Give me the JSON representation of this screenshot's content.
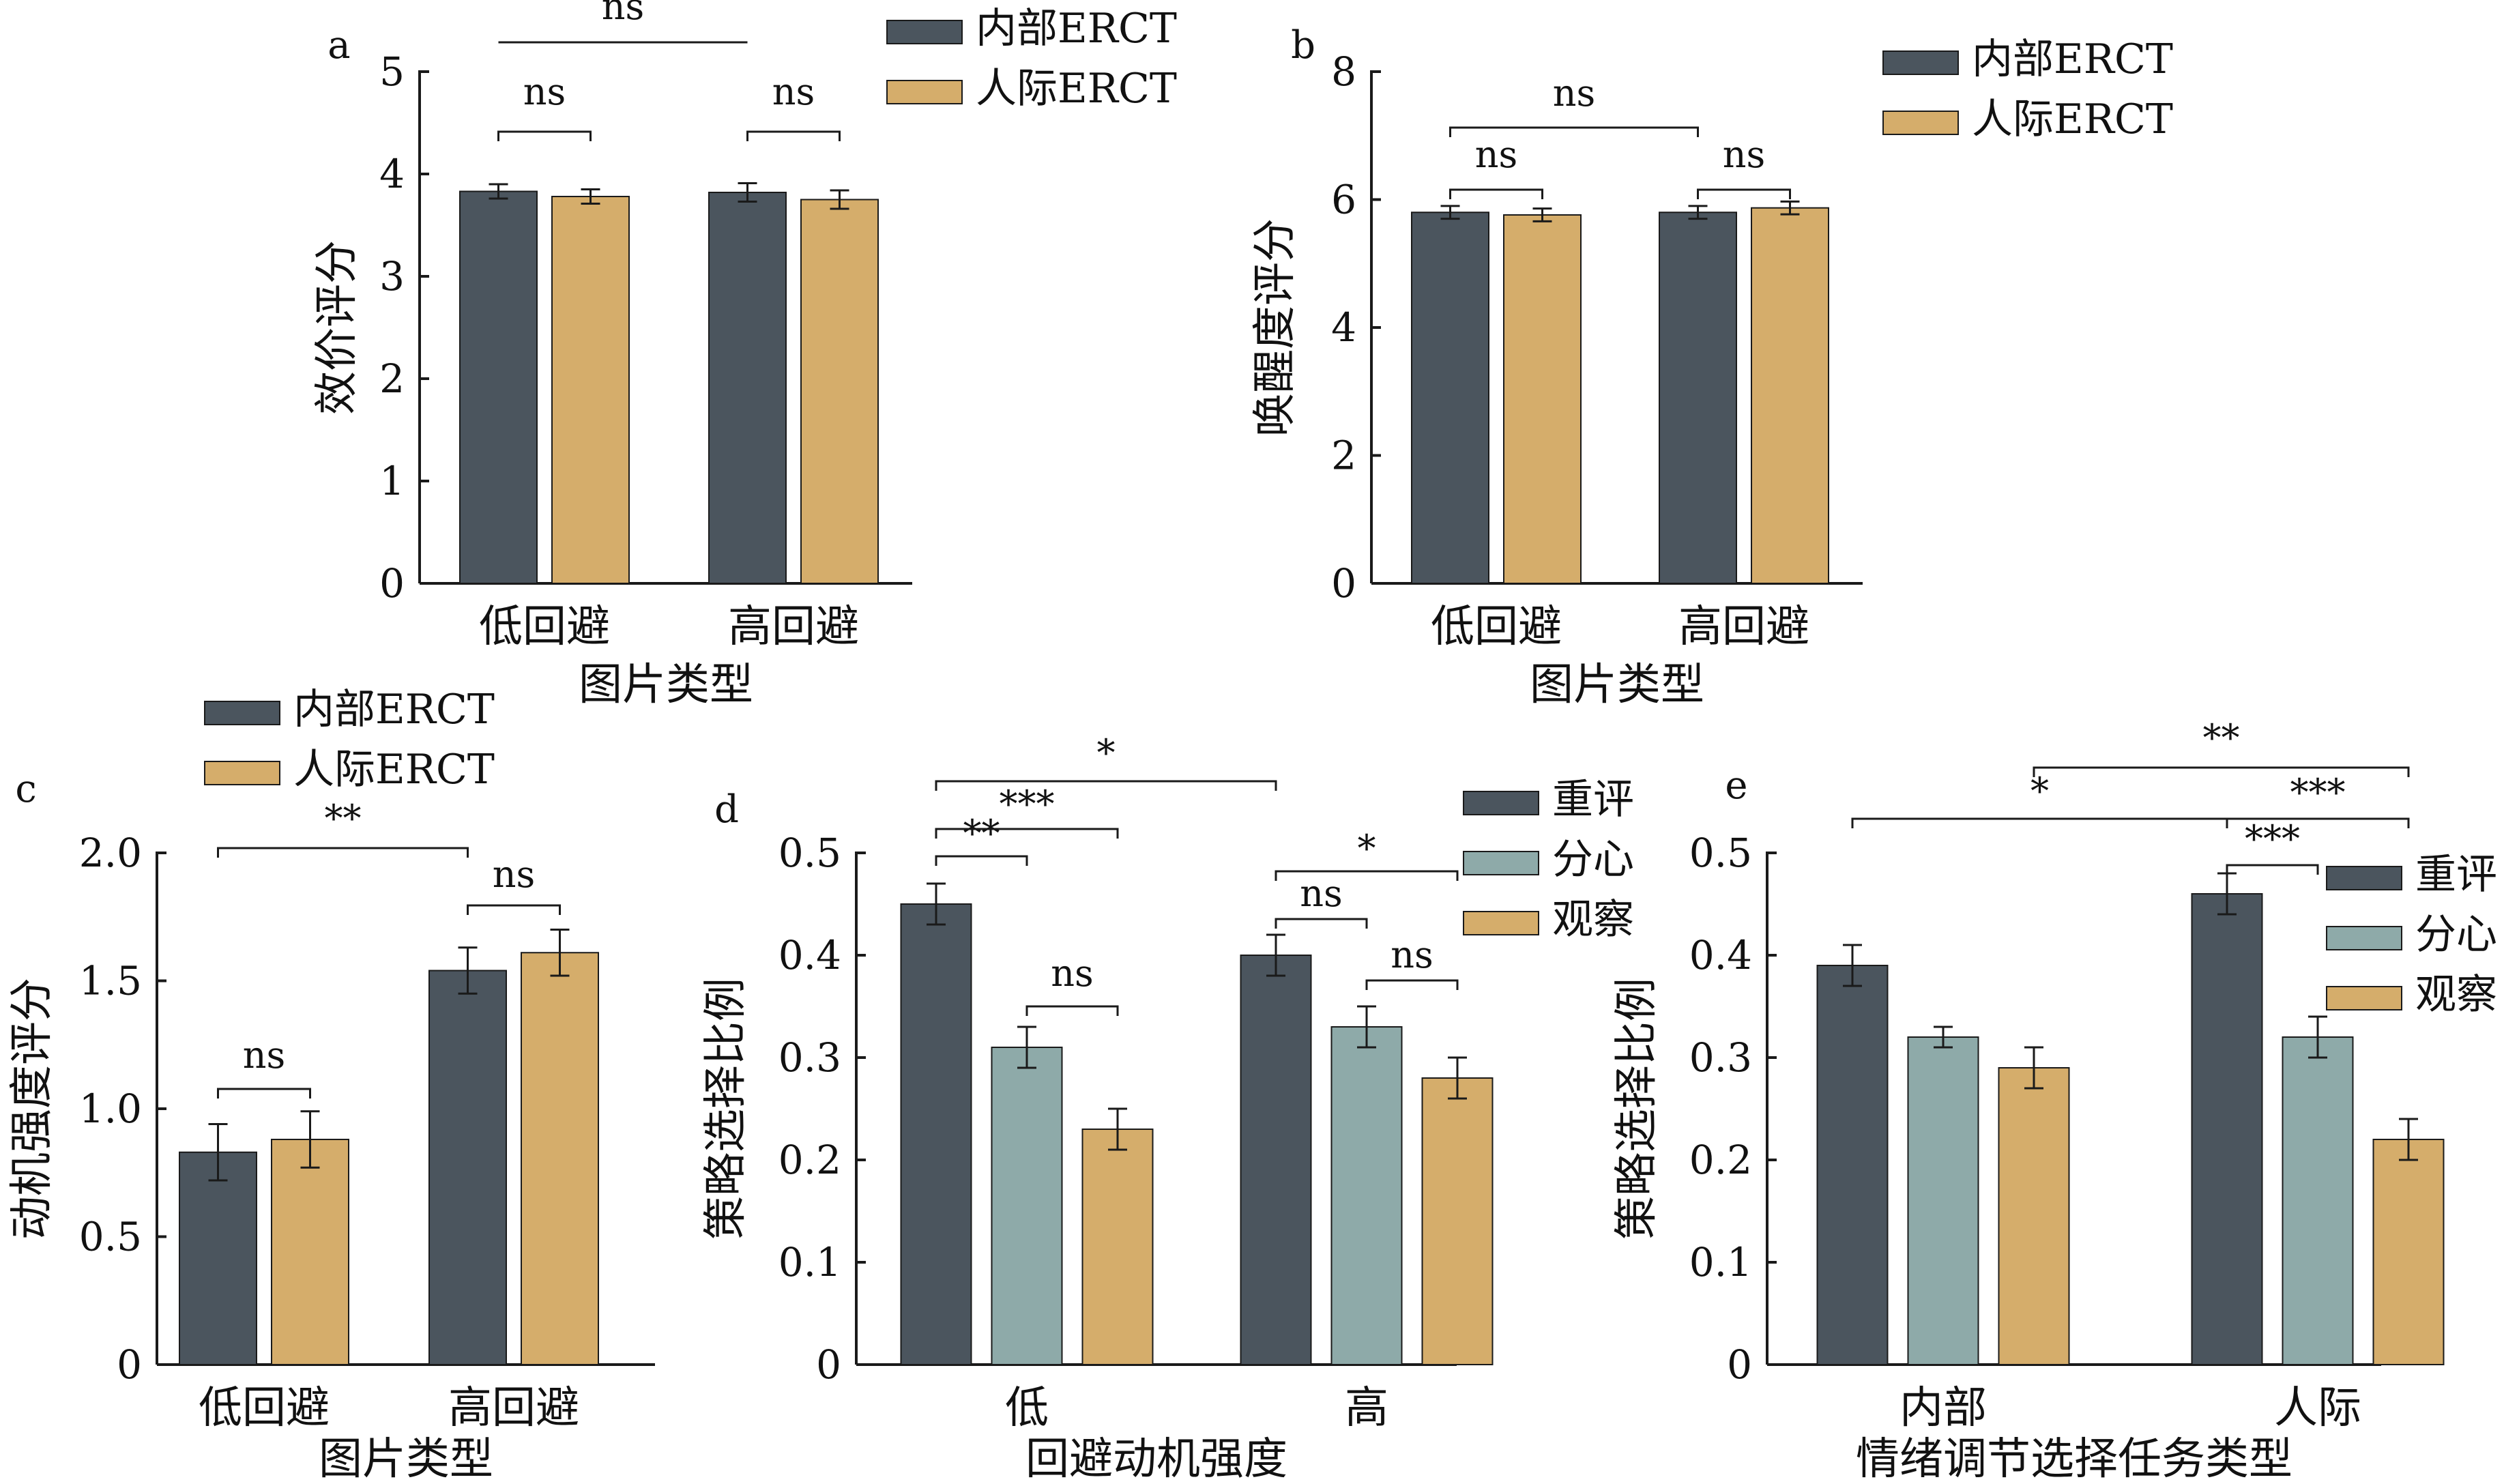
{
  "colors": {
    "dark": "#4b555e",
    "tan": "#d5ad6b",
    "teal": "#8eaaa9",
    "line": "#1a1a1a"
  },
  "chart_data": [
    {
      "panel": "a",
      "type": "bar",
      "categories": [
        "低回避",
        "高回避"
      ],
      "series": [
        {
          "name": "内部ERCT",
          "values": [
            3.83,
            3.82
          ],
          "errors": [
            0.07,
            0.09
          ]
        },
        {
          "name": "人际ERCT",
          "values": [
            3.78,
            3.75
          ],
          "errors": [
            0.07,
            0.09
          ]
        }
      ],
      "xlabel": "图片类型",
      "ylabel": "效价评分",
      "ylim": [
        0,
        5
      ],
      "yticks": [
        "0",
        "1",
        "2",
        "3",
        "4",
        "5"
      ],
      "legend_position": "top-right",
      "significance": [
        {
          "label": "ns",
          "from": [
            0,
            0
          ],
          "to": [
            0,
            1
          ]
        },
        {
          "label": "ns",
          "from": [
            1,
            0
          ],
          "to": [
            1,
            1
          ]
        },
        {
          "label": "ns",
          "from": [
            0,
            0
          ],
          "to": [
            1,
            0
          ]
        }
      ]
    },
    {
      "panel": "b",
      "type": "bar",
      "categories": [
        "低回避",
        "高回避"
      ],
      "series": [
        {
          "name": "内部ERCT",
          "values": [
            5.8,
            5.8
          ],
          "errors": [
            0.1,
            0.1
          ]
        },
        {
          "name": "人际ERCT",
          "values": [
            5.76,
            5.87
          ],
          "errors": [
            0.1,
            0.1
          ]
        }
      ],
      "xlabel": "图片类型",
      "ylabel": "唤醒度评分",
      "ylim": [
        0,
        8
      ],
      "yticks": [
        "0",
        "2",
        "4",
        "6",
        "8"
      ],
      "legend_position": "top-right",
      "significance": [
        {
          "label": "ns",
          "from": [
            0,
            0
          ],
          "to": [
            0,
            1
          ]
        },
        {
          "label": "ns",
          "from": [
            1,
            0
          ],
          "to": [
            1,
            1
          ]
        },
        {
          "label": "ns",
          "from": [
            0,
            0
          ],
          "to": [
            1,
            0
          ]
        }
      ]
    },
    {
      "panel": "c",
      "type": "bar",
      "categories": [
        "低回避",
        "高回避"
      ],
      "series": [
        {
          "name": "内部ERCT",
          "values": [
            0.83,
            1.54
          ],
          "errors": [
            0.11,
            0.09
          ]
        },
        {
          "name": "人际ERCT",
          "values": [
            0.88,
            1.61
          ],
          "errors": [
            0.11,
            0.09
          ]
        }
      ],
      "xlabel": "图片类型",
      "ylabel": "动机强度评分",
      "ylim": [
        0,
        2.0
      ],
      "yticks": [
        "0",
        "0.5",
        "1.0",
        "1.5",
        "2.0"
      ],
      "legend_position": "top-left",
      "significance": [
        {
          "label": "ns",
          "from": [
            0,
            0
          ],
          "to": [
            0,
            1
          ]
        },
        {
          "label": "ns",
          "from": [
            1,
            0
          ],
          "to": [
            1,
            1
          ]
        },
        {
          "label": "**",
          "from": [
            0,
            0
          ],
          "to": [
            1,
            0
          ]
        }
      ]
    },
    {
      "panel": "d",
      "type": "bar",
      "categories": [
        "低",
        "高"
      ],
      "series": [
        {
          "name": "重评",
          "values": [
            0.45,
            0.4
          ],
          "errors": [
            0.02,
            0.02
          ]
        },
        {
          "name": "分心",
          "values": [
            0.31,
            0.33
          ],
          "errors": [
            0.02,
            0.02
          ]
        },
        {
          "name": "观察",
          "values": [
            0.23,
            0.28
          ],
          "errors": [
            0.02,
            0.02
          ]
        }
      ],
      "xlabel": "回避动机强度",
      "ylabel": "策略选择比例",
      "ylim": [
        0,
        0.5
      ],
      "yticks": [
        "0",
        "0.1",
        "0.2",
        "0.3",
        "0.4",
        "0.5"
      ],
      "legend_position": "top-right",
      "significance": [
        {
          "label": "**",
          "from": [
            0,
            0
          ],
          "to": [
            0,
            1
          ]
        },
        {
          "label": "***",
          "from": [
            0,
            0
          ],
          "to": [
            0,
            2
          ]
        },
        {
          "label": "ns",
          "from": [
            0,
            1
          ],
          "to": [
            0,
            2
          ]
        },
        {
          "label": "*",
          "from": [
            0,
            0
          ],
          "to": [
            1,
            0
          ]
        },
        {
          "label": "ns",
          "from": [
            1,
            0
          ],
          "to": [
            1,
            1
          ]
        },
        {
          "label": "ns",
          "from": [
            1,
            1
          ],
          "to": [
            1,
            2
          ]
        },
        {
          "label": "*",
          "from": [
            1,
            0
          ],
          "to": [
            1,
            2
          ]
        }
      ]
    },
    {
      "panel": "e",
      "type": "bar",
      "categories": [
        "内部",
        "人际"
      ],
      "series": [
        {
          "name": "重评",
          "values": [
            0.39,
            0.46
          ],
          "errors": [
            0.02,
            0.02
          ]
        },
        {
          "name": "分心",
          "values": [
            0.32,
            0.32
          ],
          "errors": [
            0.01,
            0.02
          ]
        },
        {
          "name": "观察",
          "values": [
            0.29,
            0.22
          ],
          "errors": [
            0.02,
            0.02
          ]
        }
      ],
      "xlabel": "情绪调节选择任务类型",
      "ylabel": "策略选择比例",
      "ylim": [
        0,
        0.5
      ],
      "yticks": [
        "0",
        "0.1",
        "0.2",
        "0.3",
        "0.4",
        "0.5"
      ],
      "legend_position": "top-right",
      "significance": [
        {
          "label": "*",
          "from": [
            0,
            0
          ],
          "to": [
            1,
            0
          ]
        },
        {
          "label": "**",
          "from": [
            0,
            2
          ],
          "to": [
            1,
            2
          ]
        },
        {
          "label": "***",
          "from": [
            1,
            0
          ],
          "to": [
            1,
            1
          ]
        },
        {
          "label": "***",
          "from": [
            1,
            0
          ],
          "to": [
            1,
            2
          ]
        }
      ]
    }
  ]
}
